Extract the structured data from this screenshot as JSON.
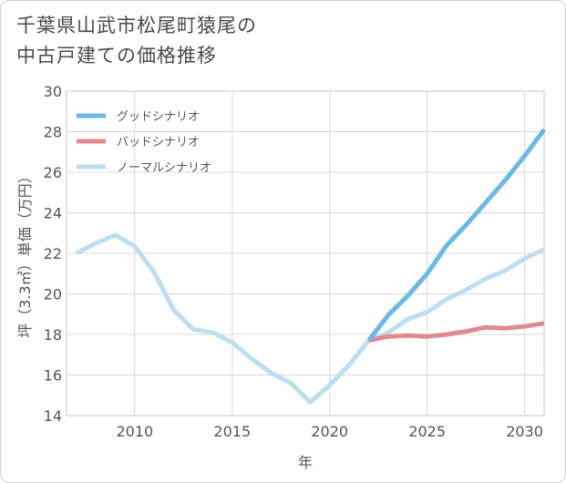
{
  "title_lines": [
    "千葉県山武市松尾町猿尾の",
    "中古戸建ての価格推移"
  ],
  "chart_data": {
    "type": "line",
    "title": "千葉県山武市松尾町猿尾の中古戸建ての価格推移",
    "xlabel": "年",
    "ylabel": "坪（3.3㎡）単価（万円）",
    "xlim": [
      2006.5,
      2031
    ],
    "ylim": [
      14,
      30
    ],
    "xticks": [
      2010,
      2015,
      2020,
      2025,
      2030
    ],
    "yticks": [
      14,
      16,
      18,
      20,
      22,
      24,
      26,
      28,
      30
    ],
    "grid": true,
    "legend_position": "top-left",
    "series": [
      {
        "name": "グッドシナリオ",
        "color": "#6cb8ea",
        "x": [
          2022,
          2023,
          2024,
          2025,
          2026,
          2027,
          2028,
          2029,
          2030,
          2031
        ],
        "values": [
          17.7,
          18.95,
          19.9,
          21.0,
          22.4,
          23.4,
          24.5,
          25.6,
          26.8,
          28.1
        ]
      },
      {
        "name": "バッドシナリオ",
        "color": "#e08b92",
        "x": [
          2022,
          2023,
          2024,
          2025,
          2026,
          2027,
          2028,
          2029,
          2030,
          2031
        ],
        "values": [
          17.7,
          17.9,
          17.95,
          17.9,
          18.0,
          18.15,
          18.35,
          18.3,
          18.4,
          18.55
        ]
      },
      {
        "name": "ノーマルシナリオ",
        "color": "#bfdeee",
        "x": [
          2007,
          2008,
          2009,
          2010,
          2011,
          2012,
          2013,
          2014,
          2015,
          2016,
          2017,
          2018,
          2019,
          2020,
          2021,
          2022,
          2023,
          2024,
          2025,
          2026,
          2027,
          2028,
          2029,
          2030,
          2031
        ],
        "values": [
          22.0,
          22.5,
          22.9,
          22.35,
          21.05,
          19.2,
          18.25,
          18.1,
          17.6,
          16.8,
          16.1,
          15.6,
          14.65,
          15.5,
          16.5,
          17.7,
          18.1,
          18.75,
          19.1,
          19.75,
          20.2,
          20.75,
          21.15,
          21.75,
          22.2
        ]
      }
    ]
  }
}
